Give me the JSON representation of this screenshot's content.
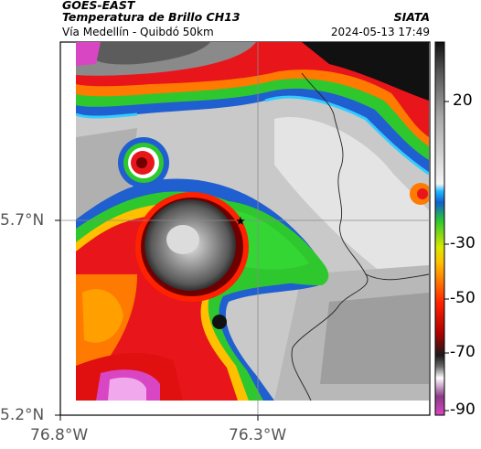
{
  "header": {
    "satellite": "GOES-EAST",
    "product": "Temperatura de Brillo CH13",
    "area": "Vía Medellín - Quibdó 50km",
    "source": "SIATA",
    "datetime": "2024-05-13 17:49"
  },
  "axes": {
    "lat_ticks": [
      "5.7°N",
      "5.2°N"
    ],
    "lon_ticks": [
      "76.8°W",
      "76.3°W"
    ]
  },
  "colorbar": {
    "ticks": [
      "20",
      "-30",
      "-50",
      "-70",
      "-90"
    ]
  },
  "marker": {
    "symbol": "★"
  },
  "colors": {
    "cold": "#d946c4",
    "very_cold": "#1a1a1a",
    "red": "#e8161b",
    "orange": "#ff6a00",
    "yellow": "#e6e600",
    "green": "#22c722",
    "blue": "#1f5fd0",
    "cyan": "#33ccff",
    "warm_gray": "#c8c8c8"
  }
}
